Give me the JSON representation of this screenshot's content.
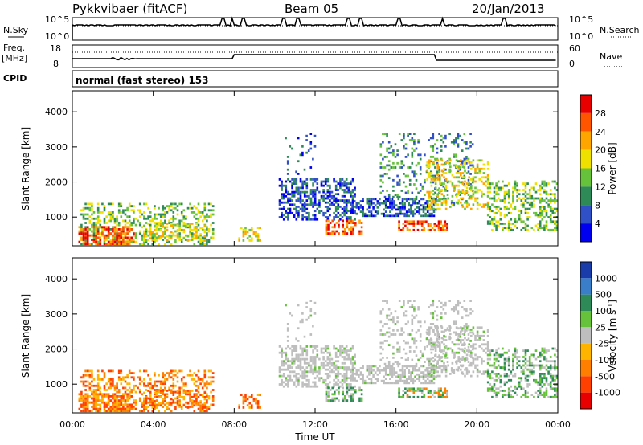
{
  "header": {
    "station": "Pykkvibaer (fitACF)",
    "beam": "Beam 05",
    "date": "20/Jan/2013"
  },
  "left_labels": {
    "nsky": "N.Sky",
    "freq_line1": "Freq.",
    "freq_line2": "[MHz]",
    "cpid": "CPID"
  },
  "right_labels": {
    "nsearch": "N.Search",
    "nave": "Nave"
  },
  "noise_axis": {
    "left_ticks": [
      "10^5",
      "10^0"
    ],
    "right_ticks": [
      "10^5",
      "10^0"
    ]
  },
  "freq_axis": {
    "left_ticks": [
      "18",
      "8"
    ],
    "right_ticks": [
      "60",
      "0"
    ]
  },
  "cpid_text": "normal (fast stereo) 153",
  "chart_data": [
    {
      "type": "heatmap",
      "panel": "power",
      "ylabel": "Slant Range [km]",
      "yticks": [
        "1000",
        "2000",
        "3000",
        "4000"
      ],
      "ylim": [
        180,
        4600
      ],
      "colorbar_label": "Power [dB]",
      "colorbar_ticks": [
        "4",
        "8",
        "12",
        "16",
        "20",
        "24",
        "28"
      ],
      "colorbar_colors": [
        "#0000f0",
        "#3050c8",
        "#2e8b57",
        "#66c23a",
        "#f0e000",
        "#ffa500",
        "#ff5500",
        "#e80000"
      ],
      "xlim": [
        "00:00",
        "24:00"
      ]
    },
    {
      "type": "heatmap",
      "panel": "velocity",
      "ylabel": "Slant Range [km]",
      "yticks": [
        "1000",
        "2000",
        "3000",
        "4000"
      ],
      "ylim": [
        180,
        4600
      ],
      "colorbar_label": "Velocity [m s^-1]",
      "colorbar_ticks": [
        "1000",
        "500",
        "100",
        "25",
        "-25",
        "-100",
        "-500",
        "-1000"
      ],
      "colorbar_colors": [
        "#1a3caa",
        "#3a7dc8",
        "#2e8b57",
        "#66c23a",
        "#bebebe",
        "#ffb400",
        "#ff8000",
        "#ff4000",
        "#e80000"
      ],
      "xlim": [
        "00:00",
        "24:00"
      ]
    }
  ],
  "time_axis": {
    "label": "Time UT",
    "ticks": [
      "00:00",
      "04:00",
      "08:00",
      "12:00",
      "16:00",
      "20:00",
      "00:00"
    ]
  }
}
